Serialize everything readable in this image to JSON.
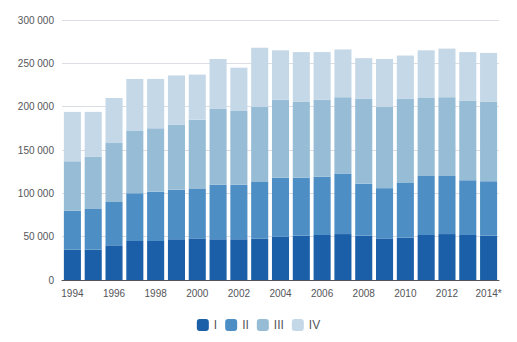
{
  "chart_data": {
    "type": "bar",
    "stacked": true,
    "categories": [
      "1994",
      null,
      "1996",
      null,
      "1998",
      null,
      "2000",
      null,
      "2002",
      null,
      "2004",
      null,
      "2006",
      null,
      "2008",
      null,
      "2010",
      null,
      "2012",
      null,
      "2014*"
    ],
    "series": [
      {
        "name": "I",
        "color": "#1a5fa8",
        "values": [
          35000,
          35000,
          40000,
          45000,
          45000,
          47000,
          48000,
          47000,
          47000,
          48000,
          50000,
          51000,
          52000,
          53000,
          51000,
          48000,
          49000,
          52000,
          53000,
          52000,
          51000
        ]
      },
      {
        "name": "II",
        "color": "#4d8ec4",
        "values": [
          45000,
          47000,
          50000,
          55000,
          57000,
          57000,
          57000,
          63000,
          63000,
          65000,
          68000,
          67000,
          67000,
          70000,
          60000,
          58000,
          63000,
          68000,
          67000,
          63000,
          63000
        ]
      },
      {
        "name": "III",
        "color": "#96bcd6",
        "values": [
          57000,
          60000,
          68000,
          72000,
          73000,
          75000,
          80000,
          88000,
          85000,
          87000,
          90000,
          88000,
          89000,
          88000,
          98000,
          94000,
          97000,
          90000,
          91000,
          92000,
          92000
        ]
      },
      {
        "name": "IV",
        "color": "#c5d8e8",
        "values": [
          57000,
          52000,
          52000,
          60000,
          57000,
          57000,
          52000,
          57000,
          50000,
          68000,
          57000,
          57000,
          55000,
          55000,
          47000,
          55000,
          50000,
          55000,
          56000,
          56000,
          56000
        ]
      }
    ],
    "ylim": [
      0,
      300000
    ],
    "yticks": [
      0,
      {
        "value": 50000,
        "label": "50 000"
      },
      {
        "value": 100000,
        "label": "100 000"
      },
      {
        "value": 150000,
        "label": "150 000"
      },
      {
        "value": 200000,
        "label": "200 000"
      },
      {
        "value": 250000,
        "label": "250 000"
      },
      {
        "value": 300000,
        "label": "300 000"
      }
    ],
    "grid": true,
    "legend": "bottom"
  }
}
